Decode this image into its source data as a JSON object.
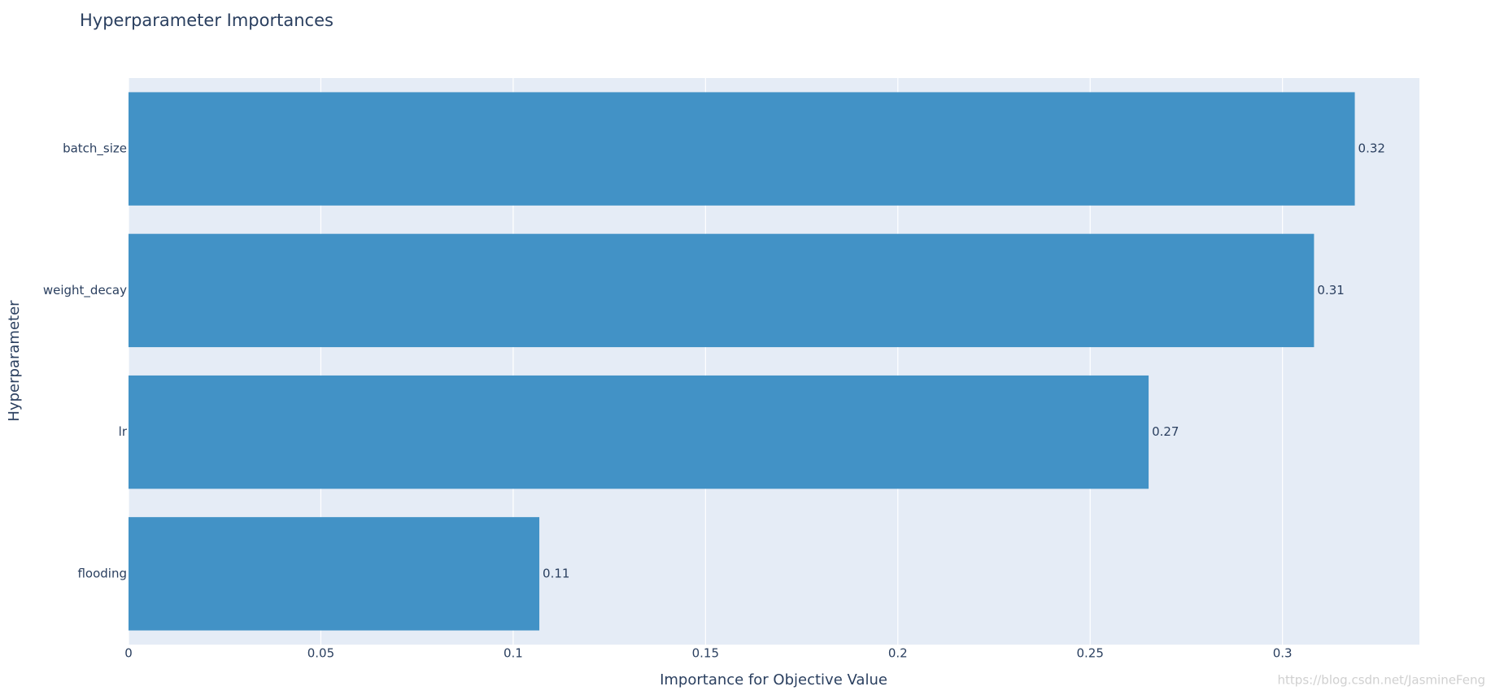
{
  "chart_data": {
    "type": "bar",
    "orientation": "horizontal",
    "title": "Hyperparameter Importances",
    "x_label": "Importance for Objective Value",
    "y_label": "Hyperparameter",
    "categories": [
      "batch_size",
      "weight_decay",
      "lr",
      "flooding"
    ],
    "values": [
      0.3188,
      0.3082,
      0.2652,
      0.1068
    ],
    "value_labels": [
      "0.32",
      "0.31",
      "0.27",
      "0.11"
    ],
    "color": "#4292c6",
    "xlim": [
      0,
      0.3356
    ],
    "xticks": [
      0,
      0.05,
      0.1,
      0.15,
      0.2,
      0.25,
      0.3
    ],
    "grid": true,
    "watermark": "https://blog.csdn.net/JasmineFeng"
  }
}
